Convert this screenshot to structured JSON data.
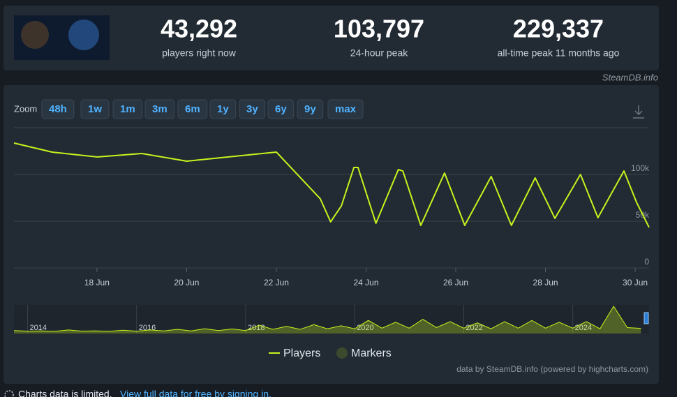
{
  "header": {
    "stats": [
      {
        "value": "43,292",
        "label": "players right now"
      },
      {
        "value": "103,797",
        "label": "24-hour peak"
      },
      {
        "value": "229,337",
        "label": "all-time peak 11 months ago"
      }
    ],
    "source": "SteamDB.info"
  },
  "zoom": {
    "label": "Zoom",
    "buttons": [
      "48h",
      "1w",
      "1m",
      "3m",
      "6m",
      "1y",
      "3y",
      "6y",
      "9y",
      "max"
    ]
  },
  "chart_data": {
    "type": "line",
    "x": [
      16.15,
      17.0,
      18.0,
      19.0,
      20.0,
      22.0,
      22.98,
      23.21,
      23.45,
      23.73,
      23.82,
      24.22,
      24.72,
      24.82,
      25.22,
      25.75,
      26.2,
      26.79,
      27.24,
      27.77,
      28.21,
      28.78,
      29.17,
      29.75,
      30.03,
      30.31
    ],
    "series": [
      {
        "name": "Players",
        "color": "#c8f31d",
        "values": [
          133600,
          123900,
          118700,
          122400,
          114200,
          123900,
          73900,
          49300,
          66400,
          107500,
          107500,
          47800,
          105200,
          103700,
          45500,
          101500,
          45500,
          97800,
          45500,
          96300,
          53000,
          100000,
          53700,
          103700,
          70200,
          43292
        ]
      }
    ],
    "marker_series": {
      "name": "Markers",
      "color": "#3b4a2c"
    },
    "xlim": [
      16.15,
      30.31
    ],
    "xticks": [
      {
        "value": 18,
        "label": "18 Jun"
      },
      {
        "value": 20,
        "label": "20 Jun"
      },
      {
        "value": 22,
        "label": "22 Jun"
      },
      {
        "value": 24,
        "label": "24 Jun"
      },
      {
        "value": 26,
        "label": "26 Jun"
      },
      {
        "value": 28,
        "label": "28 Jun"
      },
      {
        "value": 30,
        "label": "30 Jun"
      }
    ],
    "ylim": [
      0,
      150000
    ],
    "yticks": [
      0,
      {
        "value": 50000,
        "label": "50k"
      },
      {
        "value": 100000,
        "label": "100k"
      }
    ],
    "grid": true
  },
  "navigator": {
    "x": [
      2013.75,
      2014.0,
      2014.25,
      2014.5,
      2014.75,
      2015.0,
      2015.25,
      2015.5,
      2015.75,
      2016.0,
      2016.25,
      2016.5,
      2016.75,
      2017.0,
      2017.25,
      2017.5,
      2017.75,
      2018.0,
      2018.25,
      2018.5,
      2018.75,
      2019.0,
      2019.25,
      2019.5,
      2019.75,
      2020.0,
      2020.25,
      2020.5,
      2020.75,
      2021.0,
      2021.25,
      2021.5,
      2021.75,
      2022.0,
      2022.25,
      2022.5,
      2022.75,
      2023.0,
      2023.25,
      2023.5,
      2023.75,
      2024.0,
      2024.25,
      2024.5,
      2024.75,
      2025.0,
      2025.25
    ],
    "values": [
      25000,
      20000,
      22000,
      18000,
      30000,
      20000,
      22000,
      18000,
      28000,
      20000,
      30000,
      22000,
      35000,
      22000,
      40000,
      25000,
      38000,
      25000,
      70000,
      35000,
      60000,
      35000,
      75000,
      40000,
      65000,
      40000,
      110000,
      45000,
      95000,
      45000,
      120000,
      50000,
      100000,
      45000,
      90000,
      40000,
      100000,
      45000,
      110000,
      45000,
      95000,
      45000,
      100000,
      40000,
      229000,
      50000,
      43000
    ],
    "xlim": [
      2013.75,
      2025.4
    ],
    "xticks": [
      2014,
      2016,
      2018,
      2020,
      2022,
      2024
    ]
  },
  "credit": "data by SteamDB.info (powered by highcharts.com)",
  "footer": {
    "notice": "Charts data is limited.",
    "link": "View full data for free by signing in."
  }
}
